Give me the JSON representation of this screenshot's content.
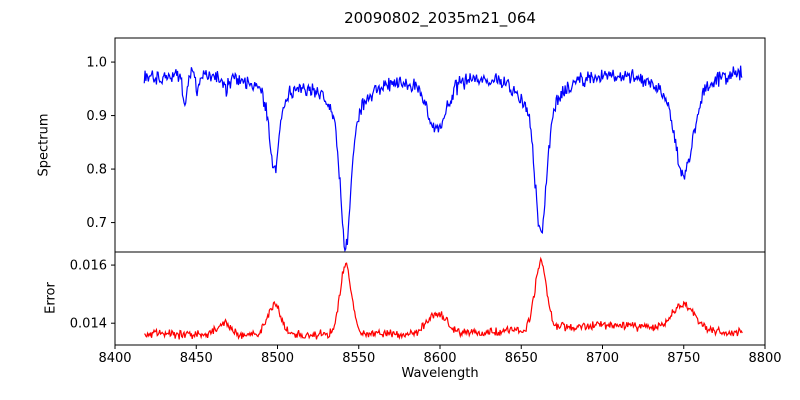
{
  "chart_data": {
    "type": "line",
    "title": "20090802_2035m21_064",
    "xlabel": "Wavelength",
    "xlim": [
      8400,
      8800
    ],
    "x_ticks": [
      {
        "value": 8400,
        "label": "8400"
      },
      {
        "value": 8450,
        "label": "8450"
      },
      {
        "value": 8500,
        "label": "8500"
      },
      {
        "value": 8550,
        "label": "8550"
      },
      {
        "value": 8600,
        "label": "8600"
      },
      {
        "value": 8650,
        "label": "8650"
      },
      {
        "value": 8700,
        "label": "8700"
      },
      {
        "value": 8750,
        "label": "8750"
      },
      {
        "value": 8800,
        "label": "8800"
      }
    ],
    "noise_seed": 20090802,
    "panels": [
      {
        "name": "spectrum",
        "ylabel": "Spectrum",
        "ylim": [
          0.645,
          1.045
        ],
        "y_ticks": [
          {
            "value": 0.7,
            "label": "0.7"
          },
          {
            "value": 0.8,
            "label": "0.8"
          },
          {
            "value": 0.9,
            "label": "0.9"
          },
          {
            "value": 1.0,
            "label": "1.0"
          }
        ],
        "series": {
          "name": "spectrum-flux",
          "color": "#0000ff",
          "x_start": 8418,
          "x_end": 8786,
          "x_step": 0.5,
          "continuum": 0.985,
          "tilt_per_angstrom": 5e-05,
          "tilt_center": 8600,
          "noise_amplitude": 0.018,
          "absorption_lines": [
            {
              "center": 8443,
              "gauss_depth": 0.055,
              "gauss_sigma": 1.2,
              "lorentz_depth": 0,
              "lorentz_gamma": 1
            },
            {
              "center": 8451,
              "gauss_depth": 0.028,
              "gauss_sigma": 1.0,
              "lorentz_depth": 0,
              "lorentz_gamma": 1
            },
            {
              "center": 8468,
              "gauss_depth": 0.02,
              "gauss_sigma": 2.0,
              "lorentz_depth": 0,
              "lorentz_gamma": 1
            },
            {
              "center": 8498,
              "gauss_depth": 0.115,
              "gauss_sigma": 2.6,
              "lorentz_depth": 0.06,
              "lorentz_gamma": 8
            },
            {
              "center": 8542,
              "gauss_depth": 0.22,
              "gauss_sigma": 3.0,
              "lorentz_depth": 0.1,
              "lorentz_gamma": 12
            },
            {
              "center": 8598,
              "gauss_depth": 0.065,
              "gauss_sigma": 5.0,
              "lorentz_depth": 0.04,
              "lorentz_gamma": 12
            },
            {
              "center": 8662,
              "gauss_depth": 0.2,
              "gauss_sigma": 3.2,
              "lorentz_depth": 0.1,
              "lorentz_gamma": 12
            },
            {
              "center": 8750,
              "gauss_depth": 0.12,
              "gauss_sigma": 5.0,
              "lorentz_depth": 0.08,
              "lorentz_gamma": 14
            }
          ]
        }
      },
      {
        "name": "error",
        "ylabel": "Error",
        "ylim": [
          0.01325,
          0.01645
        ],
        "y_ticks": [
          {
            "value": 0.014,
            "label": "0.014"
          },
          {
            "value": 0.016,
            "label": "0.016"
          }
        ],
        "series": {
          "name": "error-curve",
          "color": "#ff0000",
          "x_start": 8418,
          "x_end": 8786,
          "x_step": 0.5,
          "baseline": 0.01362,
          "noise_amplitude": 0.00018,
          "peaks": [
            {
              "center": 8467,
              "amp": 0.0004,
              "sigma": 4
            },
            {
              "center": 8498,
              "amp": 0.001,
              "sigma": 4
            },
            {
              "center": 8542,
              "amp": 0.0024,
              "sigma": 3.5
            },
            {
              "center": 8598,
              "amp": 0.0007,
              "sigma": 6
            },
            {
              "center": 8662,
              "amp": 0.0023,
              "sigma": 3.5
            },
            {
              "center": 8700,
              "amp": 0.0003,
              "sigma": 40
            },
            {
              "center": 8750,
              "amp": 0.0009,
              "sigma": 7
            }
          ]
        }
      }
    ]
  }
}
